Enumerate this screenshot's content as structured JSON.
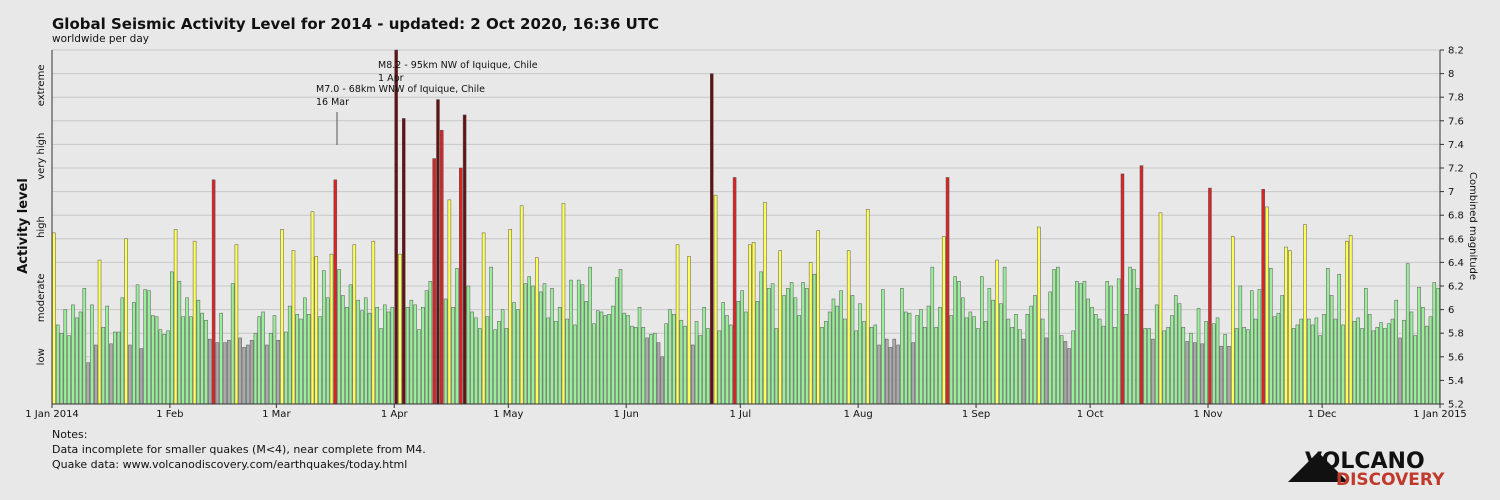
{
  "chart_data": {
    "type": "bar",
    "title": "Global Seismic Activity Level for 2014 - updated:  2 Oct 2020, 16:36 UTC",
    "subtitle": "worldwide per day",
    "y_label": "Activity level",
    "y2_label": "Combined magnitude",
    "level_labels": [
      {
        "value": 5.6,
        "label": "low"
      },
      {
        "value": 6.1,
        "label": "moderate"
      },
      {
        "value": 6.7,
        "label": "high"
      },
      {
        "value": 7.3,
        "label": "very high"
      },
      {
        "value": 7.9,
        "label": "extreme"
      }
    ],
    "xlim": [
      0,
      365
    ],
    "xticks": [
      {
        "value": 0,
        "label": "1 Jan 2014"
      },
      {
        "value": 31,
        "label": "1 Feb"
      },
      {
        "value": 59,
        "label": "1 Mar"
      },
      {
        "value": 90,
        "label": "1 Apr"
      },
      {
        "value": 120,
        "label": "1 May"
      },
      {
        "value": 151,
        "label": "1 Jun"
      },
      {
        "value": 181,
        "label": "1 Jul"
      },
      {
        "value": 212,
        "label": "1 Aug"
      },
      {
        "value": 243,
        "label": "1 Sep"
      },
      {
        "value": 273,
        "label": "1 Oct"
      },
      {
        "value": 304,
        "label": "1 Nov"
      },
      {
        "value": 334,
        "label": "1 Dec"
      },
      {
        "value": 365,
        "label": "1 Jan 2015"
      }
    ],
    "y2lim": [
      5.2,
      8.2
    ],
    "y2ticks": [
      5.2,
      5.4,
      5.6,
      5.8,
      6,
      6.2,
      6.4,
      6.6,
      6.8,
      7,
      7.2,
      7.4,
      7.6,
      7.8,
      8,
      8.2
    ],
    "grid": true,
    "annotations": [
      {
        "lines": [
          "M8.2 - 95km NW of Iquique, Chile",
          "1 Apr"
        ],
        "x": 90
      },
      {
        "lines": [
          "M7.0 - 68km WNW of Iquique, Chile",
          "16 Mar"
        ],
        "x": 74
      }
    ],
    "values": [
      6.65,
      5.87,
      5.8,
      6.0,
      5.78,
      6.04,
      5.93,
      5.98,
      6.18,
      5.55,
      6.04,
      5.7,
      6.42,
      5.85,
      6.03,
      5.71,
      5.81,
      5.81,
      6.1,
      6.6,
      5.7,
      6.06,
      6.21,
      5.67,
      6.17,
      6.16,
      5.95,
      5.94,
      5.83,
      5.79,
      5.82,
      6.32,
      6.68,
      6.24,
      5.94,
      6.1,
      5.94,
      6.58,
      6.08,
      5.97,
      5.91,
      5.75,
      7.1,
      5.72,
      5.97,
      5.72,
      5.74,
      6.22,
      6.55,
      5.76,
      5.68,
      5.7,
      5.74,
      5.8,
      5.94,
      5.98,
      5.7,
      5.8,
      5.95,
      5.74,
      6.68,
      5.81,
      6.03,
      6.5,
      5.96,
      5.92,
      6.1,
      5.96,
      6.83,
      6.45,
      5.94,
      6.33,
      6.1,
      6.47,
      7.1,
      6.34,
      6.12,
      6.02,
      6.21,
      6.55,
      6.08,
      5.99,
      6.1,
      5.97,
      6.58,
      6.02,
      5.84,
      6.04,
      5.98,
      6.02,
      8.2,
      6.47,
      7.62,
      6.02,
      6.08,
      6.04,
      5.83,
      6.02,
      6.16,
      6.24,
      7.28,
      7.78,
      7.52,
      6.09,
      6.93,
      6.02,
      6.35,
      7.2,
      7.65,
      6.2,
      5.98,
      5.93,
      5.84,
      6.65,
      5.94,
      6.36,
      5.83,
      5.9,
      6.0,
      5.84,
      6.68,
      6.06,
      6.0,
      6.88,
      6.22,
      6.28,
      6.2,
      6.44,
      6.15,
      6.22,
      5.93,
      6.18,
      5.9,
      6.02,
      6.9,
      5.92,
      6.25,
      5.87,
      6.25,
      6.21,
      6.07,
      6.36,
      5.88,
      5.99,
      5.98,
      5.95,
      5.96,
      6.03,
      6.27,
      6.34,
      5.97,
      5.95,
      5.86,
      5.85,
      6.02,
      5.85,
      5.76,
      5.79,
      5.8,
      5.72,
      5.6,
      5.88,
      6.0,
      5.96,
      6.55,
      5.91,
      5.86,
      6.45,
      5.7,
      5.9,
      5.78,
      6.02,
      5.84,
      8.0,
      6.97,
      5.82,
      6.06,
      5.95,
      5.87,
      7.12,
      6.07,
      6.16,
      5.98,
      6.55,
      6.57,
      6.07,
      6.32,
      6.91,
      6.18,
      6.22,
      5.84,
      6.5,
      6.12,
      6.18,
      6.23,
      6.1,
      5.95,
      6.23,
      6.18,
      6.4,
      6.3,
      6.67,
      5.85,
      5.9,
      5.98,
      6.09,
      6.03,
      6.16,
      5.92,
      6.5,
      6.12,
      5.82,
      6.05,
      5.9,
      6.85,
      5.85,
      5.87,
      5.7,
      6.17,
      5.75,
      5.68,
      5.75,
      5.7,
      6.18,
      5.98,
      5.97,
      5.72,
      5.95,
      6.0,
      5.85,
      6.03,
      6.36,
      5.85,
      6.02,
      6.62,
      7.12,
      5.95,
      6.28,
      6.24,
      6.1,
      5.93,
      5.98,
      5.94,
      5.84,
      6.28,
      5.9,
      6.18,
      6.08,
      6.42,
      6.05,
      6.36,
      5.92,
      5.85,
      5.96,
      5.83,
      5.75,
      5.96,
      6.03,
      6.12,
      6.7,
      5.92,
      5.76,
      6.15,
      6.34,
      6.36,
      5.78,
      5.73,
      5.67,
      5.82,
      6.24,
      6.22,
      6.24,
      6.09,
      6.02,
      5.96,
      5.92,
      5.86,
      6.24,
      6.2,
      5.85,
      6.26,
      7.15,
      5.96,
      6.36,
      6.34,
      6.18,
      7.22,
      5.84,
      5.84,
      5.75,
      6.04,
      6.82,
      5.82,
      5.85,
      5.95,
      6.12,
      6.05,
      5.85,
      5.73,
      5.8,
      5.72,
      6.01,
      5.71,
      5.9,
      7.03,
      5.88,
      5.93,
      5.69,
      5.79,
      5.69,
      6.62,
      5.84,
      6.2,
      5.85,
      5.83,
      6.16,
      5.92,
      6.17,
      7.02,
      6.87,
      6.35,
      5.94,
      5.97,
      6.12,
      6.53,
      6.5,
      5.84,
      5.87,
      5.92,
      6.72,
      5.92,
      5.87,
      5.93,
      5.78,
      5.96,
      6.35,
      6.12,
      5.92,
      6.3,
      5.87,
      6.58,
      6.63,
      5.9,
      5.93,
      5.84,
      6.18,
      5.96,
      5.82,
      5.85,
      5.89,
      5.84,
      5.88,
      5.92,
      6.08,
      5.76,
      5.91,
      6.39,
      5.98,
      5.78,
      6.19,
      6.02,
      5.86,
      5.94,
      6.23,
      6.18
    ],
    "colors": [
      "#ff5",
      "#9e9",
      "#9e9",
      "#9e9",
      "#9e9",
      "#9e9",
      "#9e9",
      "#9e9",
      "#9e9",
      "#aaa",
      "#9e9",
      "#aaa",
      "#ff5",
      "#9e9",
      "#9e9",
      "#aaa",
      "#9e9",
      "#9e9",
      "#9e9",
      "#ff5",
      "#aaa",
      "#9e9",
      "#9e9",
      "#aaa",
      "#9e9",
      "#9e9",
      "#9e9",
      "#9e9",
      "#9e9",
      "#9e9",
      "#9e9",
      "#9e9",
      "#ff5",
      "#9e9",
      "#9e9",
      "#9e9",
      "#9e9",
      "#ff5",
      "#9e9",
      "#9e9",
      "#9e9",
      "#aaa",
      "#d22",
      "#aaa",
      "#9e9",
      "#aaa",
      "#aaa",
      "#9e9",
      "#ff5",
      "#aaa",
      "#aaa",
      "#aaa",
      "#aaa",
      "#9e9",
      "#9e9",
      "#9e9",
      "#aaa",
      "#9e9",
      "#9e9",
      "#aaa",
      "#ff5",
      "#9e9",
      "#9e9",
      "#ff5",
      "#9e9",
      "#9e9",
      "#9e9",
      "#9e9",
      "#ff5",
      "#ff5",
      "#9e9",
      "#9e9",
      "#9e9",
      "#ff5",
      "#d22",
      "#9e9",
      "#9e9",
      "#9e9",
      "#9e9",
      "#ff5",
      "#9e9",
      "#9e9",
      "#9e9",
      "#9e9",
      "#ff5",
      "#9e9",
      "#9e9",
      "#9e9",
      "#9e9",
      "#9e9",
      "#611",
      "#ff5",
      "#611",
      "#9e9",
      "#9e9",
      "#9e9",
      "#9e9",
      "#9e9",
      "#9e9",
      "#9e9",
      "#d22",
      "#611",
      "#d22",
      "#9e9",
      "#ff5",
      "#9e9",
      "#9e9",
      "#d22",
      "#611",
      "#9e9",
      "#9e9",
      "#9e9",
      "#9e9",
      "#ff5",
      "#9e9",
      "#9e9",
      "#9e9",
      "#9e9",
      "#9e9",
      "#9e9",
      "#ff5",
      "#9e9",
      "#9e9",
      "#ff5",
      "#9e9",
      "#9e9",
      "#9e9",
      "#ff5",
      "#9e9",
      "#9e9",
      "#9e9",
      "#9e9",
      "#9e9",
      "#9e9",
      "#ff5",
      "#9e9",
      "#9e9",
      "#9e9",
      "#9e9",
      "#9e9",
      "#9e9",
      "#9e9",
      "#9e9",
      "#9e9",
      "#9e9",
      "#9e9",
      "#9e9",
      "#9e9",
      "#9e9",
      "#9e9",
      "#9e9",
      "#9e9",
      "#9e9",
      "#9e9",
      "#9e9",
      "#9e9",
      "#aaa",
      "#9e9",
      "#9e9",
      "#aaa",
      "#aaa",
      "#9e9",
      "#9e9",
      "#9e9",
      "#ff5",
      "#9e9",
      "#9e9",
      "#ff5",
      "#aaa",
      "#9e9",
      "#9e9",
      "#9e9",
      "#9e9",
      "#611",
      "#ff5",
      "#9e9",
      "#9e9",
      "#9e9",
      "#9e9",
      "#d22",
      "#9e9",
      "#9e9",
      "#9e9",
      "#ff5",
      "#ff5",
      "#9e9",
      "#9e9",
      "#ff5",
      "#9e9",
      "#9e9",
      "#9e9",
      "#ff5",
      "#9e9",
      "#9e9",
      "#9e9",
      "#9e9",
      "#9e9",
      "#9e9",
      "#9e9",
      "#ff5",
      "#9e9",
      "#ff5",
      "#9e9",
      "#9e9",
      "#9e9",
      "#9e9",
      "#9e9",
      "#9e9",
      "#9e9",
      "#ff5",
      "#9e9",
      "#9e9",
      "#9e9",
      "#9e9",
      "#ff5",
      "#9e9",
      "#9e9",
      "#aaa",
      "#9e9",
      "#aaa",
      "#aaa",
      "#aaa",
      "#aaa",
      "#9e9",
      "#9e9",
      "#9e9",
      "#aaa",
      "#9e9",
      "#9e9",
      "#9e9",
      "#9e9",
      "#9e9",
      "#9e9",
      "#9e9",
      "#ff5",
      "#d22",
      "#9e9",
      "#9e9",
      "#9e9",
      "#9e9",
      "#9e9",
      "#9e9",
      "#9e9",
      "#9e9",
      "#9e9",
      "#9e9",
      "#9e9",
      "#9e9",
      "#ff5",
      "#9e9",
      "#9e9",
      "#9e9",
      "#9e9",
      "#9e9",
      "#9e9",
      "#aaa",
      "#9e9",
      "#9e9",
      "#9e9",
      "#ff5",
      "#9e9",
      "#aaa",
      "#9e9",
      "#9e9",
      "#9e9",
      "#9e9",
      "#aaa",
      "#aaa",
      "#9e9",
      "#9e9",
      "#9e9",
      "#9e9",
      "#9e9",
      "#9e9",
      "#9e9",
      "#9e9",
      "#9e9",
      "#9e9",
      "#9e9",
      "#9e9",
      "#9e9",
      "#d22",
      "#9e9",
      "#9e9",
      "#9e9",
      "#9e9",
      "#d22",
      "#9e9",
      "#9e9",
      "#aaa",
      "#9e9",
      "#ff5",
      "#9e9",
      "#9e9",
      "#9e9",
      "#9e9",
      "#9e9",
      "#9e9",
      "#aaa",
      "#9e9",
      "#aaa",
      "#9e9",
      "#aaa",
      "#9e9",
      "#d22",
      "#9e9",
      "#9e9",
      "#aaa",
      "#9e9",
      "#aaa",
      "#ff5",
      "#9e9",
      "#9e9",
      "#9e9",
      "#9e9",
      "#9e9",
      "#9e9",
      "#9e9",
      "#d22",
      "#ff5",
      "#9e9",
      "#9e9",
      "#9e9",
      "#9e9",
      "#ff5",
      "#ff5",
      "#9e9",
      "#9e9",
      "#9e9",
      "#ff5",
      "#9e9",
      "#9e9",
      "#9e9",
      "#9e9",
      "#9e9",
      "#9e9",
      "#9e9",
      "#9e9",
      "#9e9",
      "#9e9",
      "#ff5",
      "#ff5",
      "#9e9",
      "#9e9",
      "#9e9",
      "#9e9",
      "#9e9",
      "#9e9",
      "#9e9",
      "#9e9",
      "#9e9",
      "#9e9",
      "#9e9",
      "#9e9",
      "#aaa",
      "#9e9",
      "#9e9",
      "#9e9",
      "#9e9",
      "#9e9",
      "#9e9",
      "#9e9",
      "#9e9",
      "#9e9",
      "#9e9"
    ]
  },
  "notes": [
    "Notes:",
    "Data incomplete for smaller quakes (M<4), near complete from M4.",
    "Quake data: www.volcanodiscovery.com/earthquakes/today.html"
  ],
  "logo": {
    "line1": "VOLCANO",
    "line2": "DISCOVERY"
  }
}
